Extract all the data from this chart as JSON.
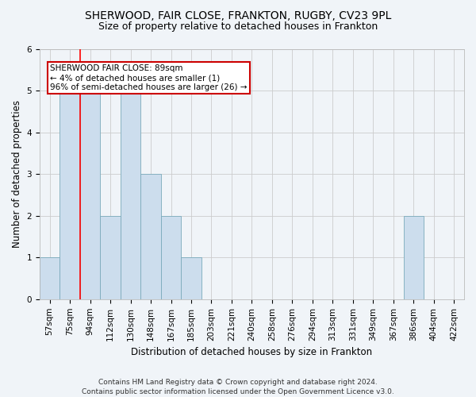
{
  "title1": "SHERWOOD, FAIR CLOSE, FRANKTON, RUGBY, CV23 9PL",
  "title2": "Size of property relative to detached houses in Frankton",
  "xlabel": "Distribution of detached houses by size in Frankton",
  "ylabel": "Number of detached properties",
  "footnote": "Contains HM Land Registry data © Crown copyright and database right 2024.\nContains public sector information licensed under the Open Government Licence v3.0.",
  "categories": [
    "57sqm",
    "75sqm",
    "94sqm",
    "112sqm",
    "130sqm",
    "148sqm",
    "167sqm",
    "185sqm",
    "203sqm",
    "221sqm",
    "240sqm",
    "258sqm",
    "276sqm",
    "294sqm",
    "313sqm",
    "331sqm",
    "349sqm",
    "367sqm",
    "386sqm",
    "404sqm",
    "422sqm"
  ],
  "values": [
    1,
    5,
    5,
    2,
    5,
    3,
    2,
    1,
    0,
    0,
    0,
    0,
    0,
    0,
    0,
    0,
    0,
    0,
    2,
    0,
    0
  ],
  "bar_color": "#ccdded",
  "bar_edge_color": "#7aaabb",
  "red_line_x": 1.5,
  "annotation_text": "SHERWOOD FAIR CLOSE: 89sqm\n← 4% of detached houses are smaller (1)\n96% of semi-detached houses are larger (26) →",
  "annotation_box_color": "#ffffff",
  "annotation_box_edge": "#cc0000",
  "ylim": [
    0,
    6
  ],
  "yticks": [
    0,
    1,
    2,
    3,
    4,
    5,
    6
  ],
  "title1_fontsize": 10,
  "title2_fontsize": 9,
  "xlabel_fontsize": 8.5,
  "ylabel_fontsize": 8.5,
  "tick_fontsize": 7.5,
  "footnote_fontsize": 6.5,
  "annot_fontsize": 7.5
}
